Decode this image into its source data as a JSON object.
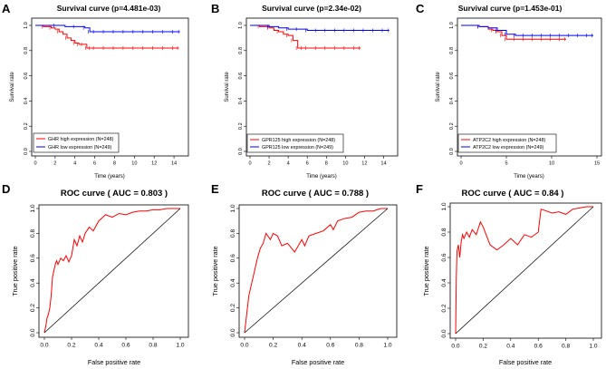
{
  "chart_data": [
    {
      "panel": "A",
      "type": "line",
      "title": "Survival curve (p=4.481e-03)",
      "xlabel": "Time (years)",
      "ylabel": "Survival rate",
      "xlim": [
        0,
        15
      ],
      "ylim": [
        0,
        1
      ],
      "xticks": [
        "0",
        "2",
        "4",
        "6",
        "8",
        "10",
        "12",
        "14"
      ],
      "yticks": [
        "0.0",
        "0.2",
        "0.4",
        "0.6",
        "0.8",
        "1.0"
      ],
      "legend_position": "bottom-left",
      "series": [
        {
          "name": "GHR high expression (N=248)",
          "color": "#ff0000",
          "x": [
            0,
            0.4,
            0.8,
            1.2,
            1.6,
            2.0,
            2.4,
            2.8,
            3.2,
            3.6,
            4.0,
            4.4,
            4.8,
            5.2,
            5.6,
            6.0,
            7.0,
            8.0,
            9.0,
            10.0,
            11.0,
            12.0,
            13.0,
            14.0,
            14.5
          ],
          "y": [
            1.0,
            1.0,
            0.99,
            0.99,
            0.98,
            0.97,
            0.95,
            0.93,
            0.9,
            0.88,
            0.86,
            0.85,
            0.85,
            0.82,
            0.82,
            0.82,
            0.82,
            0.82,
            0.82,
            0.82,
            0.82,
            0.82,
            0.82,
            0.82,
            0.82
          ]
        },
        {
          "name": "GHR low expression (N=249)",
          "color": "#0000ff",
          "x": [
            0,
            1.0,
            2.0,
            3.0,
            4.0,
            5.0,
            5.5,
            6.0,
            7.0,
            8.0,
            9.0,
            10.0,
            11.0,
            12.0,
            13.0,
            14.0,
            14.6
          ],
          "y": [
            1.0,
            1.0,
            1.0,
            0.99,
            0.99,
            0.98,
            0.95,
            0.95,
            0.95,
            0.95,
            0.95,
            0.95,
            0.95,
            0.95,
            0.95,
            0.95,
            0.95
          ]
        }
      ]
    },
    {
      "panel": "B",
      "type": "line",
      "title": "Survival curve (p=2.34e-02)",
      "xlabel": "Time (years)",
      "ylabel": "Survival rate",
      "xlim": [
        0,
        15
      ],
      "ylim": [
        0,
        1
      ],
      "xticks": [
        "0",
        "2",
        "4",
        "6",
        "8",
        "10",
        "12",
        "14"
      ],
      "yticks": [
        "0.0",
        "0.2",
        "0.4",
        "0.6",
        "0.8",
        "1.0"
      ],
      "legend_position": "bottom-left",
      "series": [
        {
          "name": "GPR125 high expression (N=248)",
          "color": "#ff0000",
          "x": [
            0,
            0.5,
            1.0,
            1.5,
            2.0,
            2.5,
            3.0,
            3.5,
            4.0,
            4.5,
            5.0,
            5.5,
            6.0,
            7.0,
            8.0,
            9.0,
            10.0,
            11.0,
            11.6
          ],
          "y": [
            1.0,
            1.0,
            0.99,
            0.99,
            0.98,
            0.96,
            0.95,
            0.93,
            0.92,
            0.88,
            0.82,
            0.82,
            0.82,
            0.82,
            0.82,
            0.82,
            0.82,
            0.82,
            0.82
          ]
        },
        {
          "name": "GPR125 low expression (N=249)",
          "color": "#0000ff",
          "x": [
            0,
            1.0,
            2.0,
            3.0,
            4.0,
            5.0,
            6.0,
            7.0,
            8.0,
            9.0,
            10.0,
            11.0,
            12.0,
            13.0,
            14.0,
            14.6
          ],
          "y": [
            1.0,
            1.0,
            0.99,
            0.98,
            0.97,
            0.97,
            0.96,
            0.96,
            0.96,
            0.96,
            0.96,
            0.96,
            0.96,
            0.96,
            0.96,
            0.96
          ]
        }
      ]
    },
    {
      "panel": "C",
      "type": "line",
      "title": "Survival curve (p=1.453e-01)",
      "xlabel": "Time (years)",
      "ylabel": "Survival rate",
      "xlim": [
        0,
        15
      ],
      "ylim": [
        0,
        1
      ],
      "xticks": [
        "0",
        "5",
        "10",
        "15"
      ],
      "yticks": [
        "0.0",
        "0.2",
        "0.4",
        "0.6",
        "0.8",
        "1.0"
      ],
      "legend_position": "bottom-left",
      "series": [
        {
          "name": "ATP2C2 high expression (N=248)",
          "color": "#ff0000",
          "x": [
            0,
            1.0,
            2.0,
            3.0,
            3.5,
            4.0,
            4.5,
            5.0,
            6.0,
            7.0,
            8.0,
            9.0,
            10.0,
            11.0,
            11.6
          ],
          "y": [
            1.0,
            1.0,
            0.99,
            0.97,
            0.96,
            0.95,
            0.92,
            0.89,
            0.89,
            0.89,
            0.89,
            0.89,
            0.89,
            0.89,
            0.89
          ]
        },
        {
          "name": "ATP2C2 low expression (N=249)",
          "color": "#0000ff",
          "x": [
            0,
            1.0,
            2.0,
            3.0,
            4.0,
            5.0,
            6.0,
            7.0,
            8.0,
            9.0,
            10.0,
            11.0,
            12.0,
            13.0,
            14.0,
            14.6
          ],
          "y": [
            1.0,
            1.0,
            0.99,
            0.98,
            0.96,
            0.93,
            0.92,
            0.92,
            0.92,
            0.92,
            0.92,
            0.92,
            0.92,
            0.92,
            0.92,
            0.92
          ]
        }
      ]
    },
    {
      "panel": "D",
      "type": "line",
      "title": "ROC curve ( AUC =  0.803 )",
      "xlabel": "False positive rate",
      "ylabel": "True positive rate",
      "xlim": [
        0,
        1
      ],
      "ylim": [
        0,
        1
      ],
      "xticks": [
        "0.0",
        "0.2",
        "0.4",
        "0.6",
        "0.8",
        "1.0"
      ],
      "yticks": [
        "0.0",
        "0.2",
        "0.4",
        "0.6",
        "0.8",
        "1.0"
      ],
      "series": [
        {
          "name": "ROC",
          "color": "#ff0000",
          "x": [
            0,
            0.01,
            0.02,
            0.03,
            0.04,
            0.05,
            0.06,
            0.07,
            0.08,
            0.09,
            0.1,
            0.12,
            0.14,
            0.16,
            0.18,
            0.2,
            0.22,
            0.24,
            0.26,
            0.28,
            0.3,
            0.33,
            0.36,
            0.4,
            0.45,
            0.5,
            0.55,
            0.6,
            0.65,
            0.7,
            0.75,
            0.8,
            0.85,
            0.9,
            0.95,
            1.0
          ],
          "y": [
            0,
            0.05,
            0.12,
            0.15,
            0.2,
            0.3,
            0.45,
            0.5,
            0.55,
            0.58,
            0.55,
            0.6,
            0.58,
            0.62,
            0.57,
            0.62,
            0.75,
            0.7,
            0.78,
            0.73,
            0.8,
            0.85,
            0.82,
            0.9,
            0.95,
            0.93,
            0.96,
            0.95,
            0.97,
            0.98,
            0.98,
            0.99,
            0.99,
            1.0,
            1.0,
            1.0
          ]
        },
        {
          "name": "diagonal",
          "color": "#000000",
          "x": [
            0,
            1
          ],
          "y": [
            0,
            1
          ]
        }
      ]
    },
    {
      "panel": "E",
      "type": "line",
      "title": "ROC curve ( AUC =  0.788 )",
      "xlabel": "False positive rate",
      "ylabel": "True positive rate",
      "xlim": [
        0,
        1
      ],
      "ylim": [
        0,
        1
      ],
      "xticks": [
        "0.0",
        "0.2",
        "0.4",
        "0.6",
        "0.8",
        "1.0"
      ],
      "yticks": [
        "0.0",
        "0.2",
        "0.4",
        "0.6",
        "0.8",
        "1.0"
      ],
      "series": [
        {
          "name": "ROC",
          "color": "#ff0000",
          "x": [
            0,
            0.01,
            0.02,
            0.03,
            0.05,
            0.07,
            0.09,
            0.11,
            0.13,
            0.15,
            0.18,
            0.2,
            0.23,
            0.26,
            0.3,
            0.35,
            0.4,
            0.42,
            0.45,
            0.5,
            0.55,
            0.6,
            0.62,
            0.65,
            0.7,
            0.75,
            0.8,
            0.85,
            0.9,
            0.95,
            1.0
          ],
          "y": [
            0,
            0.1,
            0.2,
            0.3,
            0.4,
            0.5,
            0.6,
            0.68,
            0.72,
            0.8,
            0.75,
            0.8,
            0.78,
            0.7,
            0.72,
            0.65,
            0.75,
            0.7,
            0.78,
            0.8,
            0.82,
            0.87,
            0.83,
            0.9,
            0.92,
            0.93,
            0.97,
            0.98,
            0.98,
            1.0,
            1.0
          ]
        },
        {
          "name": "diagonal",
          "color": "#000000",
          "x": [
            0,
            1
          ],
          "y": [
            0,
            1
          ]
        }
      ]
    },
    {
      "panel": "F",
      "type": "line",
      "title": "ROC curve ( AUC =  0.84 )",
      "xlabel": "False positive rate",
      "ylabel": "True positive rate",
      "xlim": [
        0,
        1
      ],
      "ylim": [
        0,
        1
      ],
      "xticks": [
        "0.0",
        "0.2",
        "0.4",
        "0.6",
        "0.8",
        "1.0"
      ],
      "yticks": [
        "0.0",
        "0.2",
        "0.4",
        "0.6",
        "0.8",
        "1.0"
      ],
      "series": [
        {
          "name": "ROC",
          "color": "#ff0000",
          "x": [
            0,
            0.005,
            0.01,
            0.02,
            0.03,
            0.04,
            0.05,
            0.06,
            0.08,
            0.1,
            0.12,
            0.15,
            0.18,
            0.2,
            0.25,
            0.3,
            0.35,
            0.4,
            0.45,
            0.5,
            0.55,
            0.6,
            0.62,
            0.65,
            0.7,
            0.75,
            0.8,
            0.85,
            0.9,
            0.95,
            1.0
          ],
          "y": [
            0,
            0.45,
            0.65,
            0.7,
            0.6,
            0.72,
            0.78,
            0.75,
            0.8,
            0.76,
            0.82,
            0.78,
            0.88,
            0.84,
            0.7,
            0.66,
            0.7,
            0.75,
            0.7,
            0.78,
            0.76,
            0.8,
            0.98,
            0.97,
            0.95,
            0.96,
            0.94,
            0.98,
            0.99,
            1.0,
            1.0
          ]
        },
        {
          "name": "diagonal",
          "color": "#000000",
          "x": [
            0,
            1
          ],
          "y": [
            0,
            1
          ]
        }
      ]
    }
  ]
}
